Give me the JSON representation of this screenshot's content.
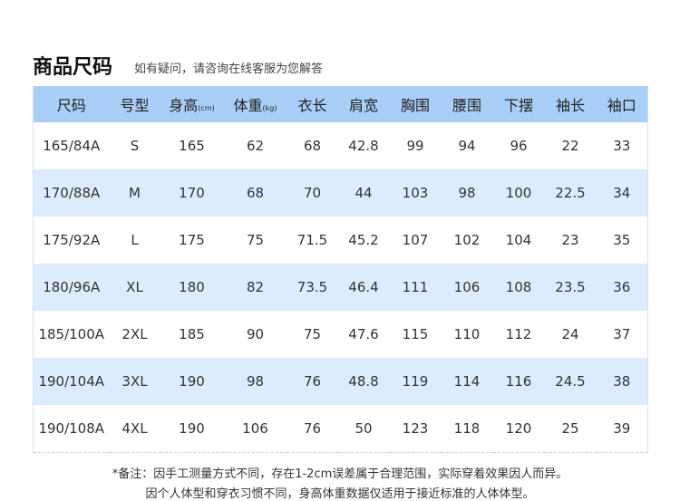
{
  "header": {
    "title": "商品尺码",
    "subtitle": "如有疑问，请咨询在线客服为您解答"
  },
  "table": {
    "columns": [
      {
        "label": "尺码"
      },
      {
        "label": "号型"
      },
      {
        "label": "身高",
        "unit": "(cm)"
      },
      {
        "label": "体重",
        "unit": "(kg)"
      },
      {
        "label": "衣长"
      },
      {
        "label": "肩宽"
      },
      {
        "label": "胸围"
      },
      {
        "label": "腰围"
      },
      {
        "label": "下摆"
      },
      {
        "label": "袖长"
      },
      {
        "label": "袖口"
      }
    ],
    "rows": [
      [
        "165/84A",
        "S",
        165,
        62,
        68,
        42.8,
        99,
        94,
        96,
        22,
        33
      ],
      [
        "170/88A",
        "M",
        170,
        68,
        70,
        44,
        103,
        98,
        100,
        22.5,
        34
      ],
      [
        "175/92A",
        "L",
        175,
        75,
        71.5,
        45.2,
        107,
        102,
        104,
        23,
        35
      ],
      [
        "180/96A",
        "XL",
        180,
        82,
        73.5,
        46.4,
        111,
        106,
        108,
        23.5,
        36
      ],
      [
        "185/100A",
        "2XL",
        185,
        90,
        75,
        47.6,
        115,
        110,
        112,
        24,
        37
      ],
      [
        "190/104A",
        "3XL",
        190,
        98,
        76,
        48.8,
        119,
        114,
        116,
        24.5,
        38
      ],
      [
        "190/108A",
        "4XL",
        190,
        106,
        76,
        50,
        123,
        118,
        120,
        25,
        39
      ]
    ]
  },
  "notes": [
    "*备注：因手工测量方式不同，存在1-2cm误差属于合理范围，实际穿着效果因人而异。",
    "因个人体型和穿衣习惯不同，身高体重数据仅适用于接近标准的人体体型。"
  ]
}
